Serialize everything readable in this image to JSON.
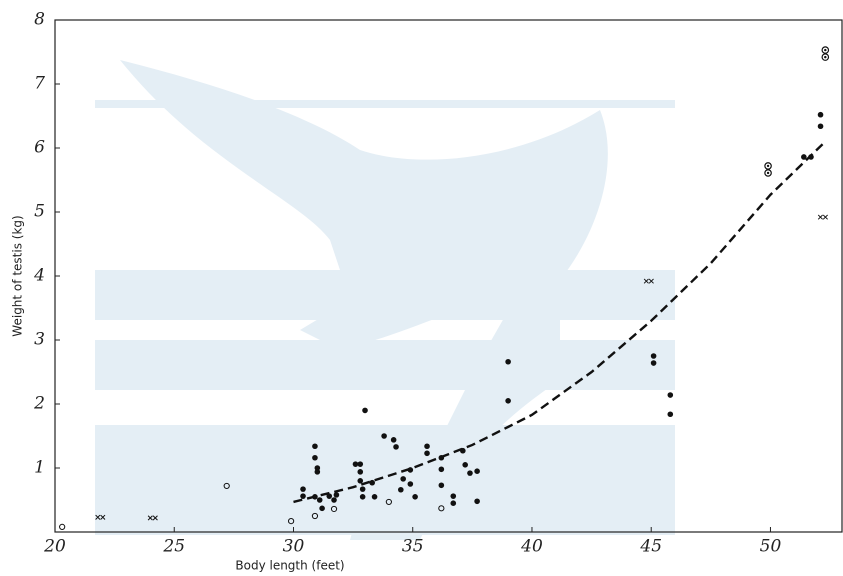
{
  "chart_data": {
    "type": "scatter",
    "xlabel": "Body length (feet)",
    "ylabel": "Weight of testis (kg)",
    "xlim": [
      20,
      53
    ],
    "ylim": [
      0,
      8
    ],
    "xticks": [
      20,
      25,
      30,
      35,
      40,
      45,
      50
    ],
    "yticks": [
      1,
      2,
      3,
      4,
      5,
      6,
      7,
      8
    ],
    "series": [
      {
        "marker": "filled",
        "color": "#111111",
        "x": [
          30.4,
          30.4,
          30.9,
          30.9,
          31.0,
          31.0,
          30.9,
          31.1,
          31.2,
          31.5,
          31.7,
          31.8,
          32.6,
          32.8,
          32.8,
          32.8,
          32.9,
          32.9,
          33.0,
          33.3,
          33.4,
          33.8,
          34.2,
          34.3,
          34.5,
          34.6,
          34.9,
          34.9,
          35.1,
          35.6,
          35.6,
          36.2,
          36.2,
          36.2,
          36.7,
          36.7,
          37.1,
          37.2,
          37.4,
          37.7,
          37.7,
          39.0,
          39.0,
          45.1,
          45.1,
          45.8,
          45.8,
          51.4,
          51.7,
          52.1,
          52.1
        ],
        "values": [
          0.67,
          0.56,
          1.34,
          1.16,
          1.0,
          0.94,
          0.55,
          0.5,
          0.37,
          0.56,
          0.5,
          0.58,
          1.06,
          1.06,
          0.94,
          0.8,
          0.55,
          0.67,
          1.9,
          0.77,
          0.55,
          1.5,
          1.44,
          1.33,
          0.66,
          0.83,
          0.97,
          0.75,
          0.55,
          1.34,
          1.23,
          1.16,
          0.98,
          0.73,
          0.56,
          0.45,
          1.27,
          1.05,
          0.92,
          0.95,
          0.48,
          2.66,
          2.05,
          2.75,
          2.64,
          2.14,
          1.84,
          5.86,
          5.86,
          6.52,
          6.34
        ]
      },
      {
        "marker": "open",
        "color": "#111111",
        "x": [
          20.3,
          27.2,
          29.9,
          30.9,
          31.7,
          34.0,
          36.2
        ],
        "values": [
          0.08,
          0.72,
          0.17,
          0.25,
          0.36,
          0.47,
          0.37
        ]
      },
      {
        "marker": "circle-dot",
        "color": "#111111",
        "x": [
          49.9,
          49.9,
          52.3,
          52.3
        ],
        "values": [
          5.72,
          5.61,
          7.53,
          7.42
        ]
      },
      {
        "marker": "cross",
        "color": "#111111",
        "x": [
          21.9,
          24.1,
          44.9,
          52.2
        ],
        "values": [
          0.23,
          0.22,
          3.92,
          4.92
        ]
      }
    ],
    "curve": {
      "color": "#111111",
      "dashed": true,
      "x": [
        30,
        32.5,
        35,
        37.5,
        40,
        42.5,
        45,
        47.5,
        50,
        52.3
      ],
      "values": [
        0.47,
        0.7,
        1.0,
        1.36,
        1.83,
        2.5,
        3.3,
        4.2,
        5.27,
        6.1
      ]
    }
  }
}
